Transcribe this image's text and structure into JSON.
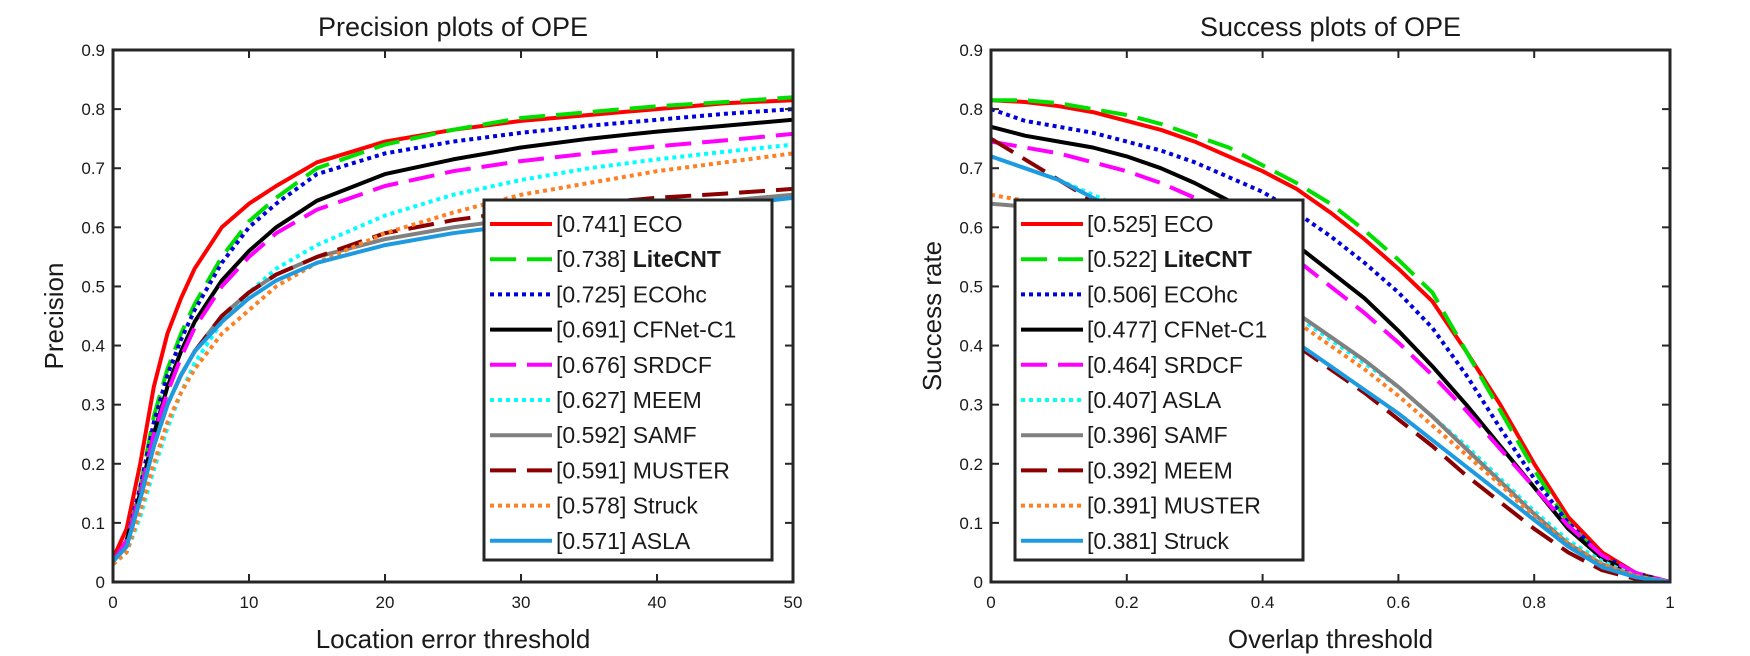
{
  "chart_data": [
    {
      "type": "line",
      "title": "Precision plots of OPE",
      "xlabel": "Location error threshold",
      "ylabel": "Precision",
      "xlim": [
        0,
        50
      ],
      "ylim": [
        0,
        0.9
      ],
      "xticks": [
        0,
        10,
        20,
        30,
        40,
        50
      ],
      "yticks": [
        0,
        0.1,
        0.2,
        0.3,
        0.4,
        0.5,
        0.6,
        0.7,
        0.8,
        0.9
      ],
      "grid": false,
      "legend_position": "bottom-right",
      "x": [
        0,
        1,
        2,
        3,
        4,
        5,
        6,
        8,
        10,
        12,
        15,
        20,
        25,
        30,
        35,
        40,
        45,
        50
      ],
      "series": [
        {
          "label": "[0.741] ECO",
          "color": "#ff0000",
          "dash": "solid",
          "values": [
            0.04,
            0.09,
            0.2,
            0.33,
            0.42,
            0.48,
            0.53,
            0.6,
            0.64,
            0.67,
            0.71,
            0.745,
            0.765,
            0.78,
            0.79,
            0.8,
            0.81,
            0.815
          ]
        },
        {
          "label": "[0.738] LiteCNT",
          "color": "#00e000",
          "dash": "dashed",
          "bold": true,
          "values": [
            0.035,
            0.07,
            0.16,
            0.28,
            0.36,
            0.42,
            0.47,
            0.55,
            0.61,
            0.65,
            0.7,
            0.74,
            0.765,
            0.785,
            0.795,
            0.805,
            0.812,
            0.82
          ]
        },
        {
          "label": "[0.725] ECOhc",
          "color": "#0000dd",
          "dash": "dotted",
          "values": [
            0.035,
            0.07,
            0.16,
            0.27,
            0.35,
            0.41,
            0.46,
            0.54,
            0.6,
            0.64,
            0.69,
            0.725,
            0.745,
            0.76,
            0.772,
            0.782,
            0.792,
            0.8
          ]
        },
        {
          "label": "[0.691] CFNet-C1",
          "color": "#000000",
          "dash": "solid",
          "values": [
            0.035,
            0.07,
            0.15,
            0.25,
            0.33,
            0.39,
            0.44,
            0.51,
            0.56,
            0.6,
            0.645,
            0.69,
            0.715,
            0.735,
            0.75,
            0.762,
            0.772,
            0.782
          ]
        },
        {
          "label": "[0.676] SRDCF",
          "color": "#ff00ff",
          "dash": "dashed",
          "values": [
            0.035,
            0.07,
            0.15,
            0.25,
            0.32,
            0.38,
            0.43,
            0.5,
            0.55,
            0.59,
            0.63,
            0.67,
            0.695,
            0.712,
            0.725,
            0.737,
            0.747,
            0.758
          ]
        },
        {
          "label": "[0.627] MEEM",
          "color": "#00ffff",
          "dash": "dotted",
          "values": [
            0.03,
            0.05,
            0.11,
            0.19,
            0.26,
            0.32,
            0.37,
            0.44,
            0.49,
            0.53,
            0.57,
            0.62,
            0.655,
            0.68,
            0.7,
            0.715,
            0.728,
            0.74
          ]
        },
        {
          "label": "[0.592] SAMF",
          "color": "#808080",
          "dash": "solid",
          "values": [
            0.035,
            0.06,
            0.14,
            0.23,
            0.3,
            0.35,
            0.39,
            0.45,
            0.49,
            0.52,
            0.55,
            0.58,
            0.6,
            0.615,
            0.625,
            0.635,
            0.645,
            0.655
          ]
        },
        {
          "label": "[0.591] MUSTER",
          "color": "#8b0000",
          "dash": "dashed",
          "values": [
            0.035,
            0.06,
            0.14,
            0.23,
            0.3,
            0.35,
            0.39,
            0.45,
            0.49,
            0.52,
            0.55,
            0.59,
            0.612,
            0.628,
            0.64,
            0.65,
            0.657,
            0.665
          ]
        },
        {
          "label": "[0.578] Struck",
          "color": "#ff7f24",
          "dash": "dotted",
          "values": [
            0.03,
            0.05,
            0.12,
            0.2,
            0.27,
            0.32,
            0.36,
            0.42,
            0.46,
            0.5,
            0.54,
            0.59,
            0.625,
            0.655,
            0.675,
            0.695,
            0.71,
            0.725
          ]
        },
        {
          "label": "[0.571] ASLA",
          "color": "#1e9be0",
          "dash": "solid",
          "values": [
            0.035,
            0.06,
            0.14,
            0.23,
            0.3,
            0.35,
            0.39,
            0.44,
            0.48,
            0.51,
            0.54,
            0.57,
            0.59,
            0.605,
            0.617,
            0.627,
            0.637,
            0.65
          ]
        }
      ]
    },
    {
      "type": "line",
      "title": "Success plots of OPE",
      "xlabel": "Overlap threshold",
      "ylabel": "Success rate",
      "xlim": [
        0,
        1
      ],
      "ylim": [
        0,
        0.9
      ],
      "xticks": [
        0,
        0.2,
        0.4,
        0.6,
        0.8,
        1
      ],
      "yticks": [
        0,
        0.1,
        0.2,
        0.3,
        0.4,
        0.5,
        0.6,
        0.7,
        0.8,
        0.9
      ],
      "grid": false,
      "legend_position": "bottom-left",
      "x": [
        0,
        0.05,
        0.1,
        0.15,
        0.2,
        0.25,
        0.3,
        0.35,
        0.4,
        0.45,
        0.5,
        0.55,
        0.6,
        0.65,
        0.7,
        0.75,
        0.8,
        0.85,
        0.9,
        0.95,
        1.0
      ],
      "series": [
        {
          "label": "[0.525] ECO",
          "color": "#ff0000",
          "dash": "solid",
          "values": [
            0.815,
            0.812,
            0.805,
            0.795,
            0.78,
            0.765,
            0.745,
            0.72,
            0.695,
            0.665,
            0.625,
            0.58,
            0.53,
            0.475,
            0.39,
            0.3,
            0.2,
            0.11,
            0.05,
            0.015,
            0.0
          ]
        },
        {
          "label": "[0.522] LiteCNT",
          "color": "#00e000",
          "dash": "dashed",
          "bold": true,
          "values": [
            0.815,
            0.815,
            0.81,
            0.8,
            0.79,
            0.775,
            0.755,
            0.735,
            0.705,
            0.675,
            0.64,
            0.595,
            0.545,
            0.49,
            0.39,
            0.29,
            0.19,
            0.1,
            0.04,
            0.012,
            0.0
          ]
        },
        {
          "label": "[0.506] ECOhc",
          "color": "#0000dd",
          "dash": "dotted",
          "values": [
            0.8,
            0.78,
            0.77,
            0.76,
            0.745,
            0.73,
            0.71,
            0.685,
            0.66,
            0.625,
            0.585,
            0.54,
            0.49,
            0.43,
            0.35,
            0.26,
            0.175,
            0.1,
            0.045,
            0.015,
            0.0
          ]
        },
        {
          "label": "[0.477] CFNet-C1",
          "color": "#000000",
          "dash": "solid",
          "values": [
            0.77,
            0.755,
            0.745,
            0.735,
            0.72,
            0.7,
            0.675,
            0.645,
            0.61,
            0.57,
            0.525,
            0.48,
            0.425,
            0.365,
            0.3,
            0.23,
            0.16,
            0.09,
            0.04,
            0.012,
            0.0
          ]
        },
        {
          "label": "[0.464] SRDCF",
          "color": "#ff00ff",
          "dash": "dashed",
          "values": [
            0.745,
            0.735,
            0.725,
            0.71,
            0.695,
            0.675,
            0.65,
            0.62,
            0.585,
            0.545,
            0.5,
            0.455,
            0.405,
            0.35,
            0.29,
            0.225,
            0.16,
            0.095,
            0.045,
            0.015,
            0.0
          ]
        },
        {
          "label": "[0.407] ASLA",
          "color": "#00ffff",
          "dash": "dotted",
          "values": [
            0.72,
            0.7,
            0.68,
            0.655,
            0.63,
            0.6,
            0.565,
            0.53,
            0.49,
            0.45,
            0.41,
            0.37,
            0.33,
            0.28,
            0.23,
            0.175,
            0.12,
            0.07,
            0.035,
            0.01,
            0.0
          ]
        },
        {
          "label": "[0.396] SAMF",
          "color": "#808080",
          "dash": "solid",
          "values": [
            0.64,
            0.635,
            0.63,
            0.62,
            0.6,
            0.575,
            0.55,
            0.52,
            0.49,
            0.455,
            0.415,
            0.375,
            0.33,
            0.28,
            0.225,
            0.17,
            0.115,
            0.065,
            0.03,
            0.01,
            0.0
          ]
        },
        {
          "label": "[0.392] MEEM",
          "color": "#8b0000",
          "dash": "dashed",
          "values": [
            0.75,
            0.715,
            0.68,
            0.645,
            0.605,
            0.565,
            0.525,
            0.48,
            0.44,
            0.4,
            0.36,
            0.32,
            0.275,
            0.23,
            0.18,
            0.135,
            0.09,
            0.05,
            0.02,
            0.005,
            0.0
          ]
        },
        {
          "label": "[0.391] MUSTER",
          "color": "#ff7f24",
          "dash": "dotted",
          "values": [
            0.655,
            0.645,
            0.63,
            0.615,
            0.595,
            0.57,
            0.54,
            0.51,
            0.475,
            0.44,
            0.4,
            0.36,
            0.315,
            0.265,
            0.215,
            0.165,
            0.11,
            0.065,
            0.03,
            0.01,
            0.0
          ]
        },
        {
          "label": "[0.381] Struck",
          "color": "#1e9be0",
          "dash": "solid",
          "values": [
            0.72,
            0.7,
            0.68,
            0.65,
            0.615,
            0.575,
            0.53,
            0.485,
            0.445,
            0.405,
            0.365,
            0.325,
            0.285,
            0.24,
            0.195,
            0.15,
            0.105,
            0.06,
            0.025,
            0.008,
            0.0
          ]
        }
      ]
    }
  ]
}
